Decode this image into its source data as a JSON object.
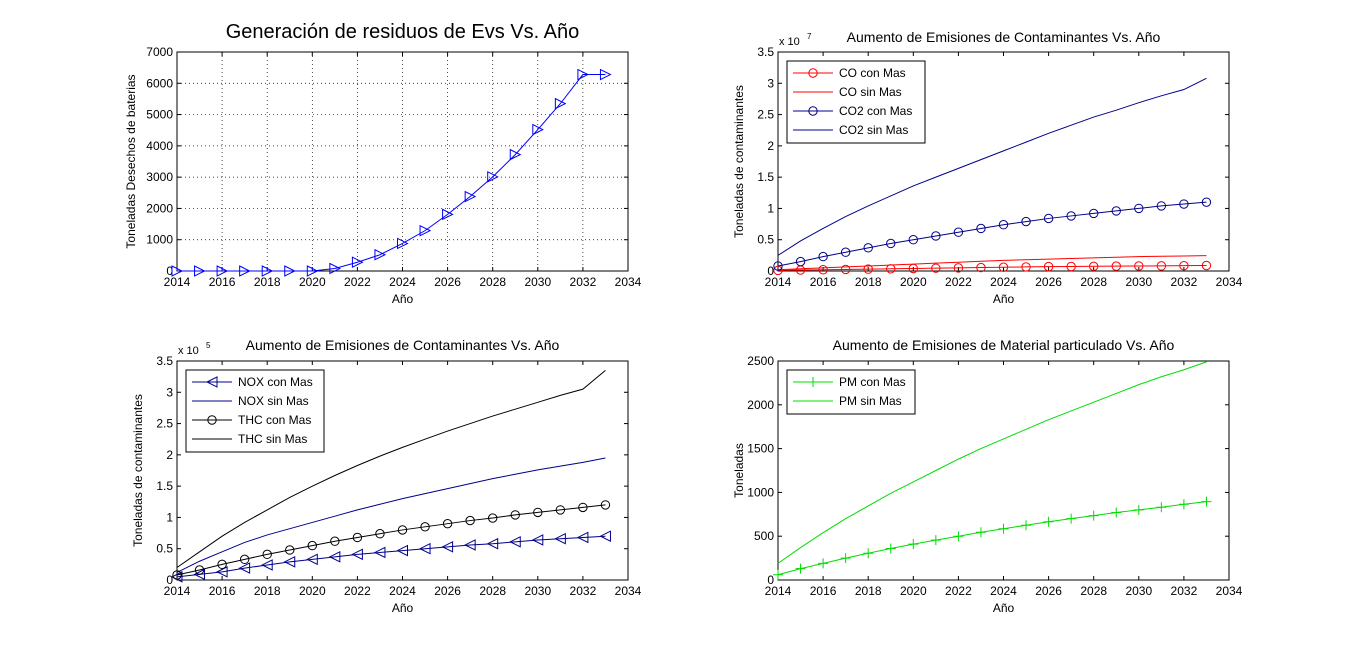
{
  "window": {
    "background": "#ffffff"
  },
  "chart_data": [
    {
      "type": "line",
      "title": "Generación de residuos de Evs Vs. Año",
      "xlabel": "Año",
      "ylabel": "Toneladas Desechos de baterias",
      "xlim": [
        2014,
        2034
      ],
      "ylim": [
        0,
        7000
      ],
      "xticks": [
        "2014",
        "2016",
        "2018",
        "2020",
        "2022",
        "2024",
        "2026",
        "2028",
        "2030",
        "2032",
        "2034"
      ],
      "yticks": [
        "0",
        "1000",
        "2000",
        "3000",
        "4000",
        "5000",
        "6000",
        "7000"
      ],
      "grid": true,
      "exponent": "",
      "legend": [],
      "x": [
        2014,
        2015,
        2016,
        2017,
        2018,
        2019,
        2020,
        2021,
        2022,
        2023,
        2024,
        2025,
        2026,
        2027,
        2028,
        2029,
        2030,
        2031,
        2032,
        2033
      ],
      "series": [
        {
          "color": "#0000ff",
          "marker": "triangle-right",
          "values": [
            0,
            0,
            0,
            0,
            0,
            0,
            0,
            80,
            280,
            520,
            880,
            1290,
            1810,
            2380,
            3010,
            3720,
            4520,
            5350,
            6280,
            6280
          ]
        }
      ]
    },
    {
      "type": "line",
      "title": "Aumento de Emisiones de Contaminantes Vs. Año",
      "xlabel": "Año",
      "ylabel": "Toneladas de contaminantes",
      "xlim": [
        2014,
        2034
      ],
      "ylim": [
        0,
        3.5
      ],
      "xticks": [
        "2014",
        "2016",
        "2018",
        "2020",
        "2022",
        "2024",
        "2026",
        "2028",
        "2030",
        "2032",
        "2034"
      ],
      "yticks": [
        "0",
        "0.5",
        "1",
        "1.5",
        "2",
        "2.5",
        "3",
        "3.5"
      ],
      "grid": false,
      "exponent": "x 10^7",
      "exponent_base": "x 10",
      "exponent_power": "7",
      "legend": [
        "CO con Mas",
        "CO sin Mas",
        "CO2 con Mas",
        "CO2 sin Mas"
      ],
      "legend_position": "top-left",
      "x": [
        2014,
        2015,
        2016,
        2017,
        2018,
        2019,
        2020,
        2021,
        2022,
        2023,
        2024,
        2025,
        2026,
        2027,
        2028,
        2029,
        2030,
        2031,
        2032,
        2033
      ],
      "series": [
        {
          "name": "CO con Mas",
          "color": "#ff0000",
          "marker": "circle",
          "values": [
            0.01,
            0.015,
            0.02,
            0.025,
            0.03,
            0.035,
            0.04,
            0.045,
            0.05,
            0.055,
            0.06,
            0.065,
            0.07,
            0.072,
            0.075,
            0.078,
            0.08,
            0.082,
            0.085,
            0.088
          ]
        },
        {
          "name": "CO sin Mas",
          "color": "#ff0000",
          "marker": "none",
          "values": [
            0.02,
            0.035,
            0.05,
            0.065,
            0.08,
            0.095,
            0.11,
            0.125,
            0.14,
            0.155,
            0.17,
            0.18,
            0.19,
            0.2,
            0.21,
            0.22,
            0.23,
            0.235,
            0.24,
            0.245
          ]
        },
        {
          "name": "CO2 con Mas",
          "color": "#00008b",
          "marker": "circle",
          "values": [
            0.08,
            0.15,
            0.23,
            0.3,
            0.37,
            0.44,
            0.5,
            0.56,
            0.62,
            0.68,
            0.74,
            0.79,
            0.84,
            0.88,
            0.92,
            0.96,
            1.0,
            1.04,
            1.07,
            1.1
          ]
        },
        {
          "name": "CO2 sin Mas",
          "color": "#00008b",
          "marker": "none",
          "values": [
            0.25,
            0.48,
            0.68,
            0.87,
            1.04,
            1.2,
            1.36,
            1.5,
            1.64,
            1.78,
            1.92,
            2.06,
            2.2,
            2.33,
            2.46,
            2.57,
            2.69,
            2.8,
            2.9,
            3.08
          ]
        }
      ]
    },
    {
      "type": "line",
      "title": "Aumento de Emisiones de Contaminantes Vs. Año",
      "xlabel": "Año",
      "ylabel": "Toneladas de contaminantes",
      "xlim": [
        2014,
        2034
      ],
      "ylim": [
        0,
        3.5
      ],
      "xticks": [
        "2014",
        "2016",
        "2018",
        "2020",
        "2022",
        "2024",
        "2026",
        "2028",
        "2030",
        "2032",
        "2034"
      ],
      "yticks": [
        "0",
        "0.5",
        "1",
        "1.5",
        "2",
        "2.5",
        "3",
        "3.5"
      ],
      "grid": false,
      "exponent": "x 10^5",
      "exponent_base": "x 10",
      "exponent_power": "5",
      "legend": [
        "NOX con Mas",
        "NOX sin Mas",
        "THC con Mas",
        "THC sin Mas"
      ],
      "legend_position": "top-left",
      "x": [
        2014,
        2015,
        2016,
        2017,
        2018,
        2019,
        2020,
        2021,
        2022,
        2023,
        2024,
        2025,
        2026,
        2027,
        2028,
        2029,
        2030,
        2031,
        2032,
        2033
      ],
      "series": [
        {
          "name": "NOX con Mas",
          "color": "#00008b",
          "marker": "triangle-left",
          "values": [
            0.05,
            0.09,
            0.13,
            0.19,
            0.24,
            0.29,
            0.33,
            0.37,
            0.41,
            0.44,
            0.47,
            0.5,
            0.53,
            0.56,
            0.58,
            0.61,
            0.64,
            0.66,
            0.68,
            0.7
          ]
        },
        {
          "name": "NOX sin Mas",
          "color": "#00008b",
          "marker": "none",
          "values": [
            0.12,
            0.3,
            0.45,
            0.6,
            0.72,
            0.82,
            0.92,
            1.02,
            1.12,
            1.21,
            1.3,
            1.38,
            1.46,
            1.54,
            1.62,
            1.69,
            1.76,
            1.82,
            1.88,
            1.95
          ]
        },
        {
          "name": "THC con Mas",
          "color": "#000000",
          "marker": "circle",
          "values": [
            0.08,
            0.16,
            0.25,
            0.33,
            0.41,
            0.48,
            0.55,
            0.62,
            0.68,
            0.74,
            0.8,
            0.85,
            0.9,
            0.95,
            0.99,
            1.04,
            1.08,
            1.12,
            1.16,
            1.2
          ]
        },
        {
          "name": "THC sin Mas",
          "color": "#000000",
          "marker": "none",
          "values": [
            0.2,
            0.45,
            0.7,
            0.92,
            1.12,
            1.32,
            1.5,
            1.67,
            1.83,
            1.98,
            2.12,
            2.25,
            2.38,
            2.5,
            2.62,
            2.73,
            2.84,
            2.95,
            3.05,
            3.35
          ]
        }
      ]
    },
    {
      "type": "line",
      "title": "Aumento de Emisiones de Material particulado Vs. Año",
      "xlabel": "Año",
      "ylabel": "Toneladas",
      "xlim": [
        2014,
        2034
      ],
      "ylim": [
        0,
        2500
      ],
      "xticks": [
        "2014",
        "2016",
        "2018",
        "2020",
        "2022",
        "2024",
        "2026",
        "2028",
        "2030",
        "2032",
        "2034"
      ],
      "yticks": [
        "0",
        "500",
        "1000",
        "1500",
        "2000",
        "2500"
      ],
      "grid": false,
      "exponent": "",
      "legend": [
        "PM con Mas",
        "PM sin Mas"
      ],
      "legend_position": "top-left",
      "x": [
        2014,
        2015,
        2016,
        2017,
        2018,
        2019,
        2020,
        2021,
        2022,
        2023,
        2024,
        2025,
        2026,
        2027,
        2028,
        2029,
        2030,
        2031,
        2032,
        2033
      ],
      "series": [
        {
          "name": "PM con Mas",
          "color": "#00dd00",
          "marker": "plus",
          "values": [
            60,
            130,
            190,
            250,
            305,
            360,
            410,
            455,
            500,
            545,
            585,
            625,
            665,
            700,
            735,
            770,
            800,
            830,
            865,
            895
          ]
        },
        {
          "name": "PM sin Mas",
          "color": "#00dd00",
          "marker": "none",
          "values": [
            190,
            370,
            540,
            700,
            845,
            990,
            1120,
            1250,
            1380,
            1500,
            1610,
            1720,
            1830,
            1930,
            2030,
            2130,
            2230,
            2320,
            2400,
            2490
          ]
        }
      ]
    }
  ]
}
